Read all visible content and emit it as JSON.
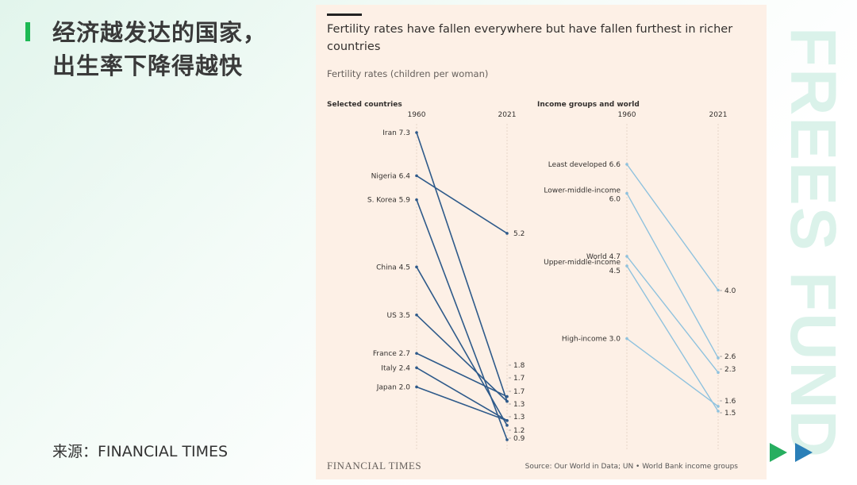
{
  "slide": {
    "title_line1": "经济越发达的国家，",
    "title_line2": "出生率下降得越快",
    "source": "来源：FINANCIAL TIMES",
    "watermark": "FREES FUND",
    "colors": {
      "accent": "#1db954",
      "play1": "#27ae60",
      "play2": "#2a7fb8"
    }
  },
  "chart_header": {
    "title": "Fertility rates have fallen everywhere but have fallen furthest in richer countries",
    "subtitle": "Fertility rates (children per woman)",
    "logo": "FINANCIAL TIMES",
    "source": "Source: Our World in Data; UN • World Bank income groups"
  },
  "chart_data": [
    {
      "type": "slope",
      "title": "Selected countries",
      "x": [
        "1960",
        "2021"
      ],
      "ylim": [
        0.9,
        7.3
      ],
      "color": "#2e5a8a",
      "series": [
        {
          "name": "Iran",
          "values": [
            7.3,
            1.7
          ]
        },
        {
          "name": "Nigeria",
          "values": [
            6.4,
            5.2
          ]
        },
        {
          "name": "S. Korea",
          "values": [
            5.9,
            0.9
          ]
        },
        {
          "name": "China",
          "values": [
            4.5,
            1.2
          ]
        },
        {
          "name": "US",
          "values": [
            3.5,
            1.7
          ]
        },
        {
          "name": "France",
          "values": [
            2.7,
            1.8
          ]
        },
        {
          "name": "Italy",
          "values": [
            2.4,
            1.3
          ]
        },
        {
          "name": "Japan",
          "values": [
            2.0,
            1.3
          ]
        }
      ],
      "end_labels": [
        "1.8",
        "1.7",
        "1.7",
        "1.3",
        "1.3",
        "1.2",
        "0.9"
      ],
      "end_label_5_2": "5.2"
    },
    {
      "type": "slope",
      "title": "Income groups and world",
      "x": [
        "1960",
        "2021"
      ],
      "ylim": [
        1.5,
        6.6
      ],
      "color": "#8fc2de",
      "series": [
        {
          "name": "Least developed",
          "values": [
            6.6,
            4.0
          ]
        },
        {
          "name": "Lower-middle-income",
          "values": [
            6.0,
            2.6
          ]
        },
        {
          "name": "World",
          "values": [
            4.7,
            2.3
          ]
        },
        {
          "name": "Upper-middle-income",
          "values": [
            4.5,
            1.5
          ]
        },
        {
          "name": "High-income",
          "values": [
            3.0,
            1.6
          ]
        }
      ],
      "end_labels": [
        "4.0",
        "2.6",
        "2.3",
        "1.6",
        "1.5"
      ]
    }
  ]
}
